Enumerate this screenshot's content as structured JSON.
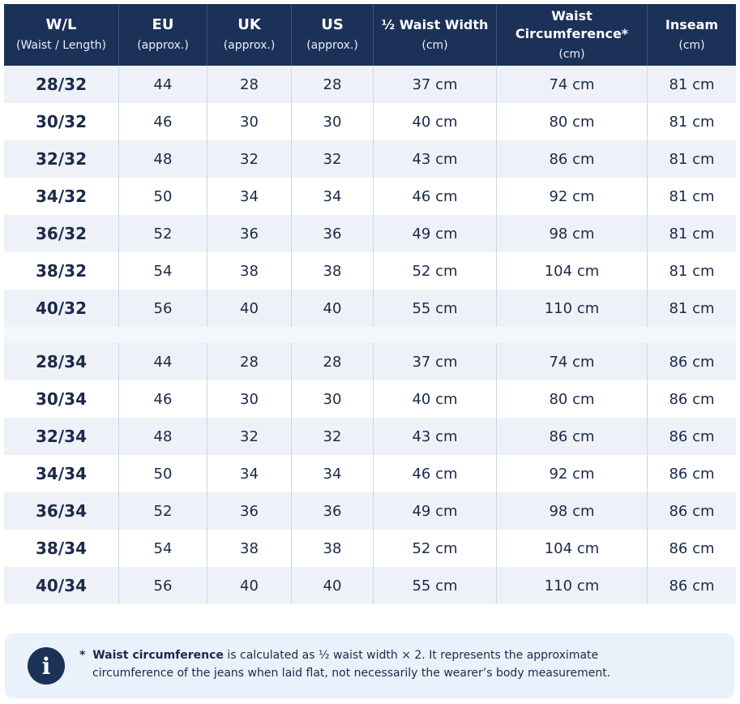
{
  "header": [
    {
      "title": "W/L",
      "sub": "(Waist / Length)"
    },
    {
      "title": "EU",
      "sub": "(approx.)"
    },
    {
      "title": "UK",
      "sub": "(approx.)"
    },
    {
      "title": "US",
      "sub": "(approx.)"
    },
    {
      "title": "½ Waist Width",
      "sub": "(cm)"
    },
    {
      "title": "Waist Circumference*",
      "sub": "(cm)"
    },
    {
      "title": "Inseam",
      "sub": "(cm)"
    }
  ],
  "groups": [
    [
      [
        "28/32",
        "44",
        "28",
        "28",
        "37 cm",
        "74 cm",
        "81 cm"
      ],
      [
        "30/32",
        "46",
        "30",
        "30",
        "40 cm",
        "80 cm",
        "81 cm"
      ],
      [
        "32/32",
        "48",
        "32",
        "32",
        "43 cm",
        "86 cm",
        "81 cm"
      ],
      [
        "34/32",
        "50",
        "34",
        "34",
        "46 cm",
        "92 cm",
        "81 cm"
      ],
      [
        "36/32",
        "52",
        "36",
        "36",
        "49 cm",
        "98 cm",
        "81 cm"
      ],
      [
        "38/32",
        "54",
        "38",
        "38",
        "52 cm",
        "104 cm",
        "81 cm"
      ],
      [
        "40/32",
        "56",
        "40",
        "40",
        "55 cm",
        "110 cm",
        "81 cm"
      ]
    ],
    [
      [
        "28/34",
        "44",
        "28",
        "28",
        "37 cm",
        "74 cm",
        "86 cm"
      ],
      [
        "30/34",
        "46",
        "30",
        "30",
        "40 cm",
        "80 cm",
        "86 cm"
      ],
      [
        "32/34",
        "48",
        "32",
        "32",
        "43 cm",
        "86 cm",
        "86 cm"
      ],
      [
        "34/34",
        "50",
        "34",
        "34",
        "46 cm",
        "92 cm",
        "86 cm"
      ],
      [
        "36/34",
        "52",
        "36",
        "36",
        "49 cm",
        "98 cm",
        "86 cm"
      ],
      [
        "38/34",
        "54",
        "38",
        "38",
        "52 cm",
        "104 cm",
        "86 cm"
      ],
      [
        "40/34",
        "56",
        "40",
        "40",
        "55 cm",
        "110 cm",
        "86 cm"
      ]
    ]
  ],
  "note": {
    "icon": "info-icon",
    "asterisk": "*",
    "bold": "Waist circumference",
    "line1_rest": " is  calculated as ½ waist width × 2. It represents the approximate",
    "line2": "circumference of the jeans when laid flat, not necessarily the wearer’s  body measurement."
  },
  "colors": {
    "header_bg": "#1c3157",
    "row_alt_bg": "#eef2f8",
    "note_bg": "#e9f1fb",
    "text": "#1b2a4a"
  }
}
